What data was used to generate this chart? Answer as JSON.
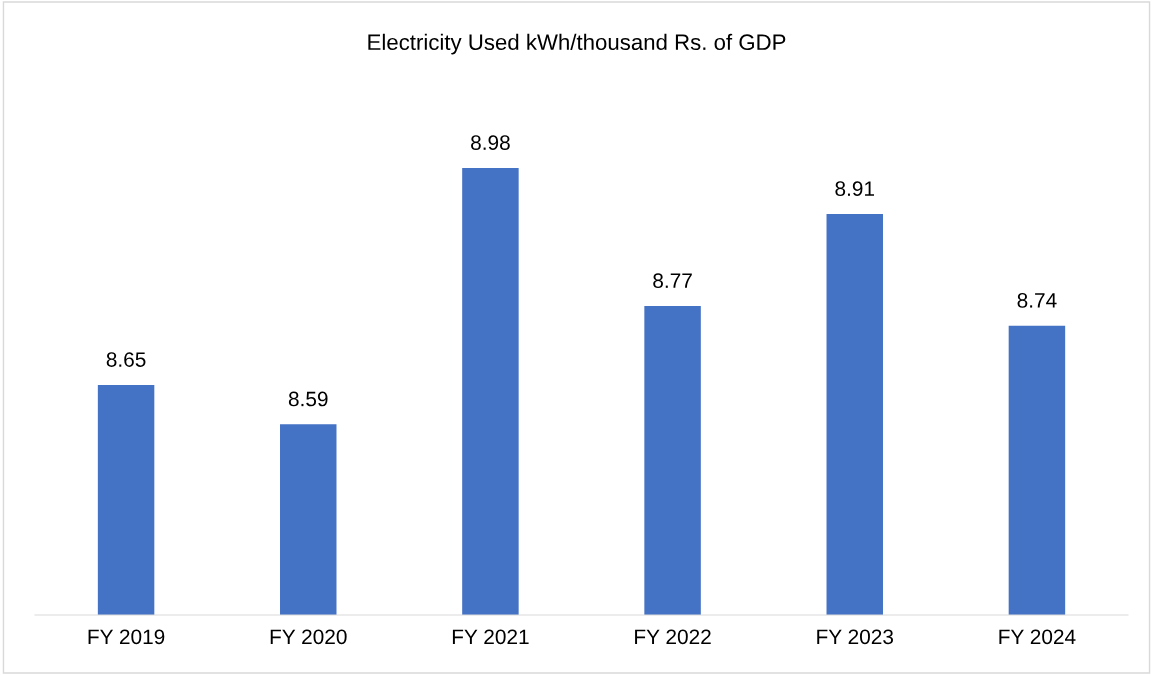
{
  "chart_data": {
    "type": "bar",
    "title": "Electricity Used kWh/thousand Rs. of GDP",
    "categories": [
      "FY 2019",
      "FY 2020",
      "FY 2021",
      "FY 2022",
      "FY 2023",
      "FY 2024"
    ],
    "values": [
      8.65,
      8.59,
      8.98,
      8.77,
      8.91,
      8.74
    ],
    "color": "#4472c4",
    "ylim": [
      8.3,
      8.98
    ],
    "tick_labels": "x",
    "data_labels": true,
    "grid": false,
    "legend": false
  }
}
